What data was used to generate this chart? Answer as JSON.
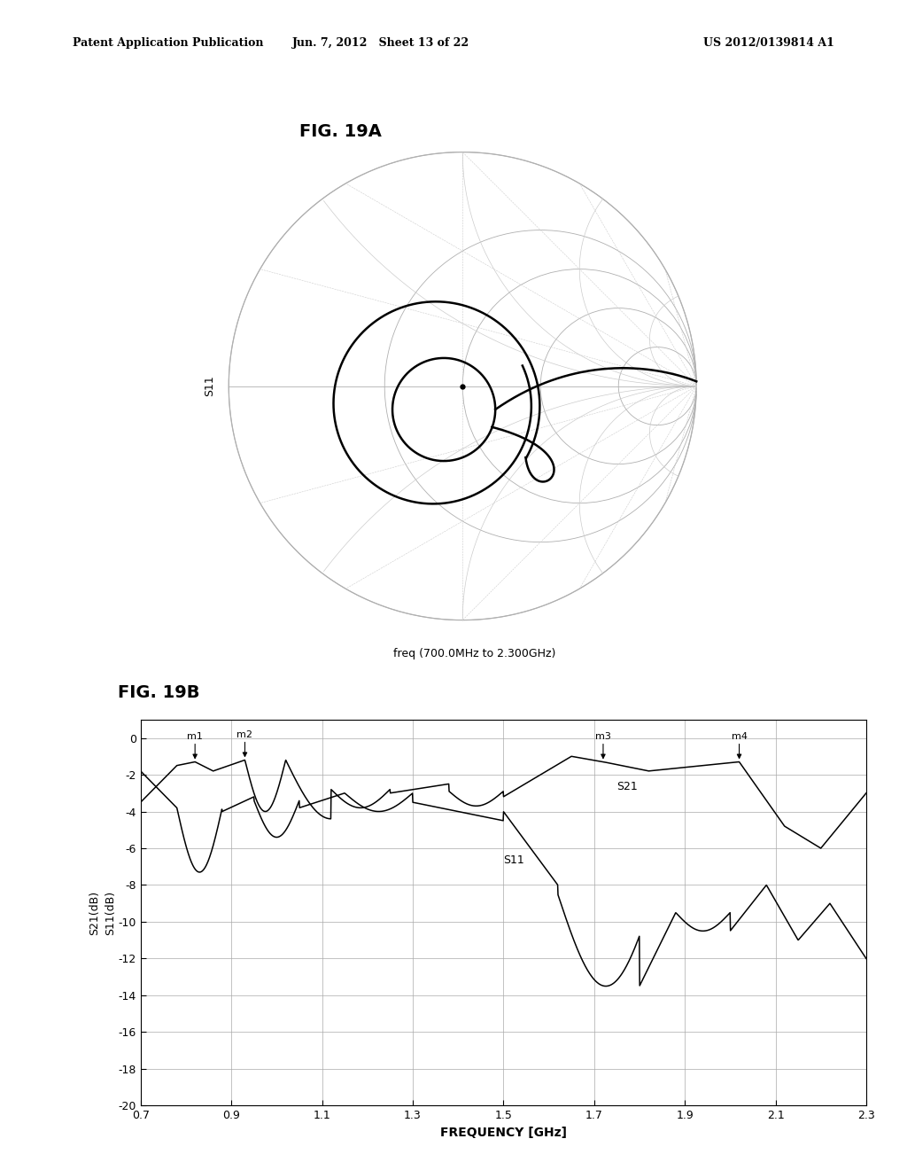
{
  "page_title_left": "Patent Application Publication",
  "page_title_mid": "Jun. 7, 2012   Sheet 13 of 22",
  "page_title_right": "US 2012/0139814 A1",
  "fig19a_title": "FIG. 19A",
  "fig19b_title": "FIG. 19B",
  "smith_label": "S11",
  "smith_freq_label": "freq (700.0MHz to 2.300GHz)",
  "plot_xlabel": "FREQUENCY [GHz]",
  "plot_ylabel": "S21(dB)\nS11(dB)",
  "ylim": [
    -20,
    1
  ],
  "xlim": [
    0.7,
    2.3
  ],
  "yticks": [
    0,
    -2,
    -4,
    -6,
    -8,
    -10,
    -12,
    -14,
    -16,
    -18,
    -20
  ],
  "xticks": [
    0.7,
    0.9,
    1.1,
    1.3,
    1.5,
    1.7,
    1.9,
    2.1,
    2.3
  ],
  "background_color": "#ffffff",
  "line_color": "#000000",
  "grid_color": "#aaaaaa",
  "smith_grid_color": "#b0b0b0",
  "dashed_grid_color": "#cccccc"
}
